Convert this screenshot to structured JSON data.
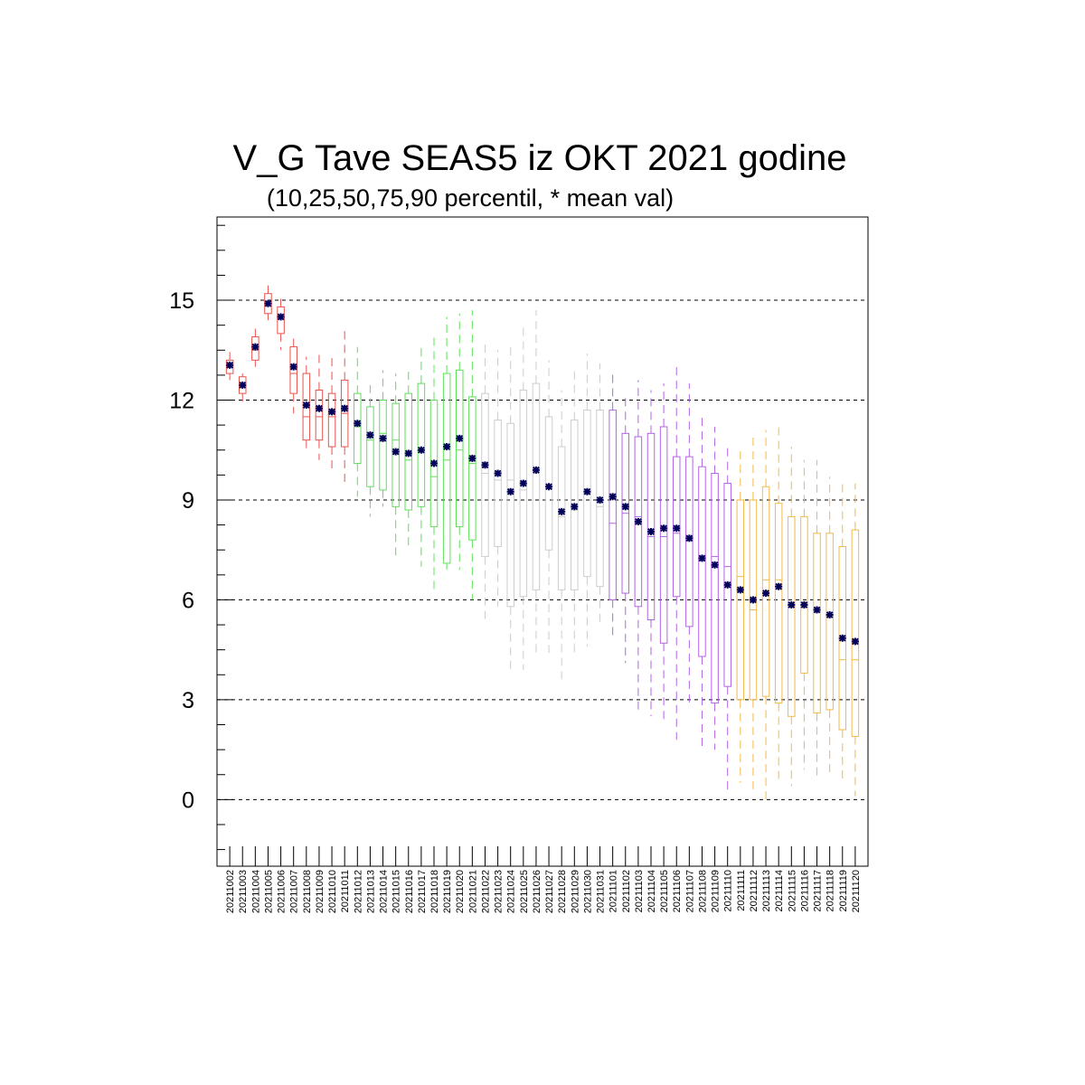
{
  "chart_data": {
    "type": "box",
    "title": "V_G Tave SEAS5 iz OKT 2021 godine",
    "subtitle": "(10,25,50,75,90 percentil, * mean val)",
    "ylim": [
      -2,
      17.5
    ],
    "yticks": [
      "0",
      "3",
      "6",
      "9",
      "12",
      "15"
    ],
    "grid": "horizontal dashed at major ticks",
    "mean_marker": "*",
    "colors": {
      "group1": "#e8534f",
      "group2": "#5ee05a",
      "group3": "#cccccc",
      "group4": "#b265e6",
      "group5": "#f4b944",
      "mean": "#00005a",
      "grid": "#000000"
    },
    "series": [
      {
        "date": "20211002",
        "group": 1,
        "p10": 12.6,
        "p25": 12.8,
        "p50": 13.0,
        "p75": 13.2,
        "p90": 13.5,
        "mean": 13.05
      },
      {
        "date": "20211003",
        "group": 1,
        "p10": 11.9,
        "p25": 12.2,
        "p50": 12.4,
        "p75": 12.7,
        "p90": 12.8,
        "mean": 12.45
      },
      {
        "date": "20211004",
        "group": 1,
        "p10": 13.0,
        "p25": 13.2,
        "p50": 13.5,
        "p75": 13.9,
        "p90": 14.2,
        "mean": 13.6
      },
      {
        "date": "20211005",
        "group": 1,
        "p10": 14.4,
        "p25": 14.6,
        "p50": 14.9,
        "p75": 15.2,
        "p90": 15.5,
        "mean": 14.9
      },
      {
        "date": "20211006",
        "group": 1,
        "p10": 13.5,
        "p25": 14.0,
        "p50": 14.5,
        "p75": 14.8,
        "p90": 15.2,
        "mean": 14.5
      },
      {
        "date": "20211007",
        "group": 1,
        "p10": 11.6,
        "p25": 12.2,
        "p50": 12.8,
        "p75": 13.6,
        "p90": 14.0,
        "mean": 13.0
      },
      {
        "date": "20211008",
        "group": 1,
        "p10": 10.4,
        "p25": 10.8,
        "p50": 11.5,
        "p75": 12.8,
        "p90": 13.3,
        "mean": 11.85
      },
      {
        "date": "20211009",
        "group": 1,
        "p10": 10.2,
        "p25": 10.8,
        "p50": 11.5,
        "p75": 12.3,
        "p90": 13.5,
        "mean": 11.75
      },
      {
        "date": "20211010",
        "group": 1,
        "p10": 9.9,
        "p25": 10.6,
        "p50": 11.5,
        "p75": 12.2,
        "p90": 13.3,
        "mean": 11.65
      },
      {
        "date": "20211011",
        "group": 1,
        "p10": 9.5,
        "p25": 10.6,
        "p50": 11.6,
        "p75": 12.6,
        "p90": 14.2,
        "mean": 11.75
      },
      {
        "date": "20211012",
        "group": 2,
        "p10": 9.1,
        "p25": 10.1,
        "p50": 11.2,
        "p75": 12.2,
        "p90": 13.6,
        "mean": 11.3
      },
      {
        "date": "20211013",
        "group": 2,
        "p10": 8.5,
        "p25": 9.4,
        "p50": 10.8,
        "p75": 11.8,
        "p90": 12.6,
        "mean": 10.95
      },
      {
        "date": "20211014",
        "group": 2,
        "p10": 8.8,
        "p25": 9.3,
        "p50": 11.0,
        "p75": 12.0,
        "p90": 12.9,
        "mean": 10.85
      },
      {
        "date": "20211015",
        "group": 2,
        "p10": 7.3,
        "p25": 8.8,
        "p50": 10.8,
        "p75": 11.9,
        "p90": 12.8,
        "mean": 10.45
      },
      {
        "date": "20211016",
        "group": 2,
        "p10": 7.5,
        "p25": 8.7,
        "p50": 10.2,
        "p75": 12.2,
        "p90": 13.0,
        "mean": 10.4
      },
      {
        "date": "20211017",
        "group": 2,
        "p10": 7.0,
        "p25": 8.8,
        "p50": 10.5,
        "p75": 12.5,
        "p90": 13.7,
        "mean": 10.5
      },
      {
        "date": "20211018",
        "group": 2,
        "p10": 6.3,
        "p25": 8.2,
        "p50": 9.7,
        "p75": 12.0,
        "p90": 13.9,
        "mean": 10.1
      },
      {
        "date": "20211019",
        "group": 2,
        "p10": 6.9,
        "p25": 7.1,
        "p50": 10.2,
        "p75": 12.8,
        "p90": 14.5,
        "mean": 10.6
      },
      {
        "date": "20211020",
        "group": 2,
        "p10": 6.9,
        "p25": 8.2,
        "p50": 10.5,
        "p75": 12.9,
        "p90": 14.6,
        "mean": 10.85
      },
      {
        "date": "20211021",
        "group": 2,
        "p10": 6.0,
        "p25": 7.8,
        "p50": 10.1,
        "p75": 12.1,
        "p90": 14.7,
        "mean": 10.25
      },
      {
        "date": "20211022",
        "group": 3,
        "p10": 5.4,
        "p25": 7.3,
        "p50": 9.8,
        "p75": 12.2,
        "p90": 13.7,
        "mean": 10.05
      },
      {
        "date": "20211023",
        "group": 3,
        "p10": 5.8,
        "p25": 7.6,
        "p50": 9.6,
        "p75": 11.4,
        "p90": 13.5,
        "mean": 9.8
      },
      {
        "date": "20211024",
        "group": 3,
        "p10": 3.9,
        "p25": 5.8,
        "p50": 9.6,
        "p75": 11.3,
        "p90": 13.6,
        "mean": 9.25
      },
      {
        "date": "20211025",
        "group": 3,
        "p10": 3.9,
        "p25": 6.1,
        "p50": 9.3,
        "p75": 12.3,
        "p90": 14.2,
        "mean": 9.5
      },
      {
        "date": "20211026",
        "group": 3,
        "p10": 4.3,
        "p25": 6.3,
        "p50": 9.8,
        "p75": 12.5,
        "p90": 14.7,
        "mean": 9.9
      },
      {
        "date": "20211027",
        "group": 3,
        "p10": 4.3,
        "p25": 7.5,
        "p50": 9.4,
        "p75": 11.5,
        "p90": 13.2,
        "mean": 9.4
      },
      {
        "date": "20211028",
        "group": 3,
        "p10": 3.5,
        "p25": 6.3,
        "p50": 8.5,
        "p75": 10.6,
        "p90": 12.3,
        "mean": 8.65
      },
      {
        "date": "20211029",
        "group": 3,
        "p10": 4.3,
        "p25": 6.3,
        "p50": 8.7,
        "p75": 11.4,
        "p90": 13.0,
        "mean": 8.8
      },
      {
        "date": "20211030",
        "group": 3,
        "p10": 4.6,
        "p25": 6.7,
        "p50": 9.3,
        "p75": 11.7,
        "p90": 13.4,
        "mean": 9.25
      },
      {
        "date": "20211031",
        "group": 3,
        "p10": 5.2,
        "p25": 6.4,
        "p50": 8.8,
        "p75": 11.7,
        "p90": 13.1,
        "mean": 9.0
      },
      {
        "date": "20211101",
        "group": 4,
        "p10": 4.9,
        "p25": 6.0,
        "p50": 8.3,
        "p75": 11.7,
        "p90": 12.9,
        "mean": 9.1
      },
      {
        "date": "20211102",
        "group": 4,
        "p10": 4.1,
        "p25": 6.2,
        "p50": 8.6,
        "p75": 11.0,
        "p90": 12.2,
        "mean": 8.8
      },
      {
        "date": "20211103",
        "group": 4,
        "p10": 2.7,
        "p25": 5.8,
        "p50": 8.5,
        "p75": 10.9,
        "p90": 12.6,
        "mean": 8.35
      },
      {
        "date": "20211104",
        "group": 4,
        "p10": 2.5,
        "p25": 5.4,
        "p50": 7.9,
        "p75": 11.0,
        "p90": 12.3,
        "mean": 8.05
      },
      {
        "date": "20211105",
        "group": 4,
        "p10": 2.4,
        "p25": 4.7,
        "p50": 7.9,
        "p75": 11.2,
        "p90": 12.5,
        "mean": 8.15
      },
      {
        "date": "20211106",
        "group": 4,
        "p10": 1.8,
        "p25": 6.1,
        "p50": 8.0,
        "p75": 10.3,
        "p90": 13.0,
        "mean": 8.15
      },
      {
        "date": "20211107",
        "group": 4,
        "p10": 2.8,
        "p25": 5.2,
        "p50": 7.9,
        "p75": 10.3,
        "p90": 12.5,
        "mean": 7.85
      },
      {
        "date": "20211108",
        "group": 4,
        "p10": 1.5,
        "p25": 4.3,
        "p50": 7.2,
        "p75": 10.0,
        "p90": 11.6,
        "mean": 7.25
      },
      {
        "date": "20211109",
        "group": 4,
        "p10": 1.5,
        "p25": 2.9,
        "p50": 7.3,
        "p75": 9.8,
        "p90": 11.2,
        "mean": 7.05
      },
      {
        "date": "20211110",
        "group": 4,
        "p10": 0.2,
        "p25": 3.4,
        "p50": 7.0,
        "p75": 9.5,
        "p90": 10.6,
        "mean": 6.45
      },
      {
        "date": "20211111",
        "group": 5,
        "p10": 0.5,
        "p25": 3.0,
        "p50": 6.7,
        "p75": 9.0,
        "p90": 10.5,
        "mean": 6.3
      },
      {
        "date": "20211112",
        "group": 5,
        "p10": 0.2,
        "p25": 3.0,
        "p50": 5.7,
        "p75": 9.0,
        "p90": 11.0,
        "mean": 6.0
      },
      {
        "date": "20211113",
        "group": 5,
        "p10": -0.1,
        "p25": 3.1,
        "p50": 6.6,
        "p75": 9.4,
        "p90": 11.1,
        "mean": 6.2
      },
      {
        "date": "20211114",
        "group": 5,
        "p10": 0.6,
        "p25": 2.9,
        "p50": 6.6,
        "p75": 8.9,
        "p90": 11.3,
        "mean": 6.4
      },
      {
        "date": "20211115",
        "group": 5,
        "p10": 0.4,
        "p25": 2.5,
        "p50": 5.8,
        "p75": 8.5,
        "p90": 10.6,
        "mean": 5.85
      },
      {
        "date": "20211116",
        "group": 5,
        "p10": 0.9,
        "p25": 3.8,
        "p50": 5.9,
        "p75": 8.5,
        "p90": 10.2,
        "mean": 5.85
      },
      {
        "date": "20211117",
        "group": 5,
        "p10": 0.7,
        "p25": 2.6,
        "p50": 5.7,
        "p75": 8.0,
        "p90": 10.2,
        "mean": 5.7
      },
      {
        "date": "20211118",
        "group": 5,
        "p10": 0.7,
        "p25": 2.7,
        "p50": 5.5,
        "p75": 8.0,
        "p90": 9.7,
        "mean": 5.55
      },
      {
        "date": "20211119",
        "group": 5,
        "p10": 0.6,
        "p25": 2.1,
        "p50": 4.2,
        "p75": 7.6,
        "p90": 9.6,
        "mean": 4.85
      },
      {
        "date": "20211120",
        "group": 5,
        "p10": 0.1,
        "p25": 1.9,
        "p50": 4.2,
        "p75": 8.1,
        "p90": 9.5,
        "mean": 4.75
      }
    ]
  }
}
